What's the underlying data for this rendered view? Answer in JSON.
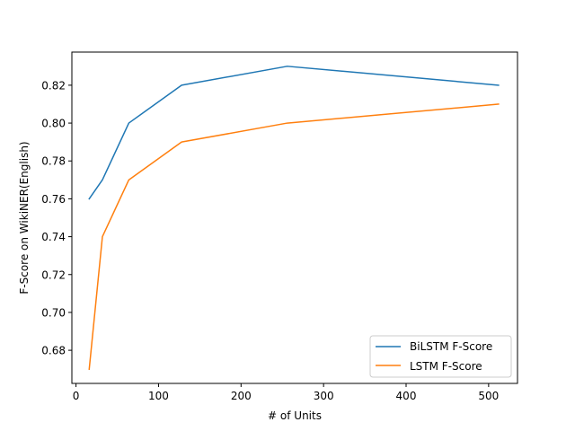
{
  "chart_data": {
    "type": "line",
    "title": "",
    "xlabel": "# of Units",
    "ylabel": "F-Score on WikiNER(English)",
    "xlim": [
      -5,
      535
    ],
    "ylim": [
      0.6625,
      0.8375
    ],
    "xticks": [
      0,
      100,
      200,
      300,
      400,
      500
    ],
    "yticks": [
      0.68,
      0.7,
      0.72,
      0.74,
      0.76,
      0.78,
      0.8,
      0.82
    ],
    "legend_position": "lower-right",
    "grid": false,
    "series": [
      {
        "name": "BiLSTM F-Score",
        "color": "#1f77b4",
        "x": [
          16,
          32,
          64,
          128,
          256,
          512
        ],
        "y": [
          0.76,
          0.77,
          0.8,
          0.82,
          0.83,
          0.82
        ]
      },
      {
        "name": "LSTM F-Score",
        "color": "#ff7f0e",
        "x": [
          16,
          32,
          64,
          128,
          256,
          512
        ],
        "y": [
          0.67,
          0.74,
          0.77,
          0.79,
          0.8,
          0.81
        ]
      }
    ]
  }
}
